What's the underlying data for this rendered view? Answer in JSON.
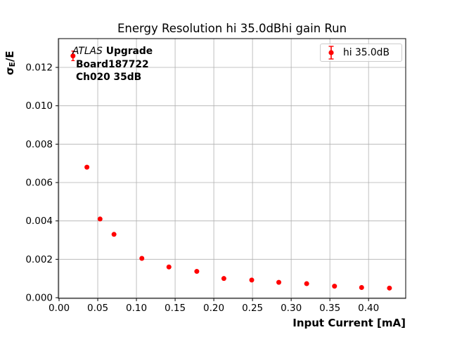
{
  "chart_data": {
    "type": "scatter",
    "title": "Energy Resolution hi 35.0dBhi gain Run",
    "xlabel": "Input Current [mA]",
    "ylabel": {
      "symbol": "σ",
      "subscript": "E",
      "suffix": "/E"
    },
    "xlim": [
      0,
      0.448
    ],
    "ylim": [
      0,
      0.0135
    ],
    "grid": true,
    "xticks": {
      "values": [
        0.0,
        0.05,
        0.1,
        0.15,
        0.2,
        0.25,
        0.3,
        0.35,
        0.4
      ],
      "labels": [
        "0.00",
        "0.05",
        "0.10",
        "0.15",
        "0.20",
        "0.25",
        "0.30",
        "0.35",
        "0.40"
      ]
    },
    "yticks": {
      "values": [
        0.0,
        0.002,
        0.004,
        0.006,
        0.008,
        0.01,
        0.012
      ],
      "labels": [
        "0.000",
        "0.002",
        "0.004",
        "0.006",
        "0.008",
        "0.010",
        "0.012"
      ]
    },
    "legend": {
      "label": "hi 35.0dB",
      "position": "upper right"
    },
    "annotation": {
      "line1_italic": "ATLAS",
      "line1_bold": "Upgrade",
      "line2": "Board187722",
      "line3": "Ch020 35dB"
    },
    "series": [
      {
        "name": "hi 35.0dB",
        "marker": "circle",
        "color": "#ff0000",
        "x": [
          0.018,
          0.036,
          0.053,
          0.071,
          0.107,
          0.142,
          0.178,
          0.213,
          0.249,
          0.284,
          0.32,
          0.356,
          0.391,
          0.427
        ],
        "y": [
          0.0126,
          0.0068,
          0.0041,
          0.0033,
          0.00205,
          0.0016,
          0.00137,
          0.001,
          0.00092,
          0.0008,
          0.00073,
          0.0006,
          0.00053,
          0.0005
        ],
        "yerr": [
          0.00025,
          0.0001,
          8e-05,
          6e-05,
          5e-05,
          4e-05,
          4e-05,
          3e-05,
          3e-05,
          3e-05,
          3e-05,
          2e-05,
          2e-05,
          2e-05
        ]
      }
    ],
    "colors": {
      "marker": "#ff0000",
      "grid": "#b0b0b0",
      "spine": "#000000",
      "tick_label": "#000000",
      "background": "#ffffff",
      "legend_border": "#cccccc"
    }
  }
}
